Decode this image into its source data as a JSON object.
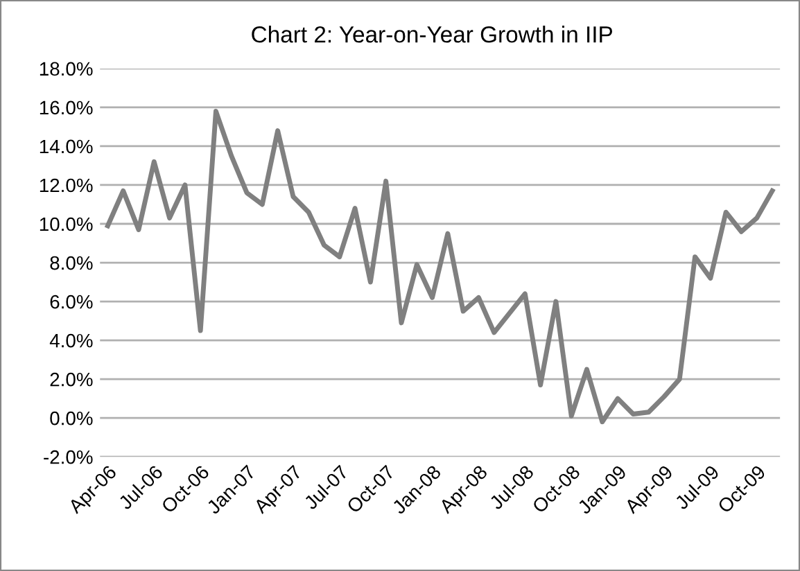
{
  "chart_data": {
    "type": "line",
    "title": "Chart 2: Year-on-Year Growth in IIP",
    "categories": [
      "Apr-06",
      null,
      null,
      "Jul-06",
      null,
      null,
      "Oct-06",
      null,
      null,
      "Jan-07",
      null,
      null,
      "Apr-07",
      null,
      null,
      "Jul-07",
      null,
      null,
      "Oct-07",
      null,
      null,
      "Jan-08",
      null,
      null,
      "Apr-08",
      null,
      null,
      "Jul-08",
      null,
      null,
      "Oct-08",
      null,
      null,
      "Jan-09",
      null,
      null,
      "Apr-09",
      null,
      null,
      "Jul-09",
      null,
      null,
      "Oct-09",
      null
    ],
    "series": [
      {
        "color": "#808080",
        "values": [
          9.9,
          11.7,
          9.7,
          13.2,
          10.3,
          12.0,
          4.5,
          15.8,
          13.5,
          11.6,
          11.0,
          14.8,
          11.4,
          10.6,
          8.9,
          8.3,
          10.8,
          7.0,
          12.2,
          4.9,
          7.9,
          6.2,
          9.5,
          5.5,
          6.2,
          4.4,
          5.4,
          6.4,
          1.7,
          6.0,
          0.1,
          2.5,
          -0.2,
          1.0,
          0.2,
          0.3,
          1.1,
          2.0,
          8.3,
          7.2,
          10.6,
          9.6,
          10.3,
          11.7
        ]
      }
    ],
    "ylim": [
      -2,
      18
    ],
    "yticks": [
      {
        "value": -2,
        "label": "-2.0%"
      },
      {
        "value": 0,
        "label": "0.0%"
      },
      {
        "value": 2,
        "label": "2.0%"
      },
      {
        "value": 4,
        "label": "4.0%"
      },
      {
        "value": 6,
        "label": "6.0%"
      },
      {
        "value": 8,
        "label": "8.0%"
      },
      {
        "value": 10,
        "label": "10.0%"
      },
      {
        "value": 12,
        "label": "12.0%"
      },
      {
        "value": 14,
        "label": "14.0%"
      },
      {
        "value": 16,
        "label": "16.0%"
      },
      {
        "value": 18,
        "label": "18.0%"
      }
    ],
    "grid": "y",
    "legend": false,
    "marker": "none",
    "line_style": "solid"
  }
}
